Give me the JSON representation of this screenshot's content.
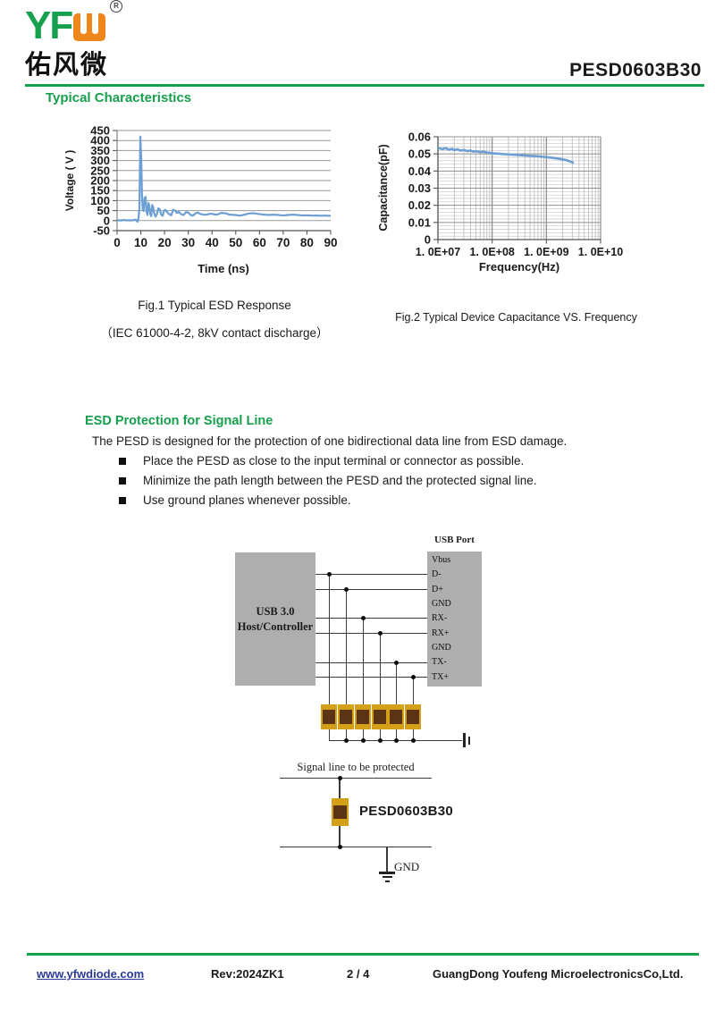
{
  "header": {
    "logo_yf": "YF",
    "logo_cn": "佑风微",
    "registered_mark": "®",
    "part_number": "PESD0603B30"
  },
  "sections": {
    "typical_characteristics": "Typical Characteristics",
    "esd_protection": {
      "title": "ESD Protection for Signal Line",
      "intro": "The PESD is designed for the protection of one bidirectional data line from ESD damage.",
      "bullets": [
        "Place the PESD as close to the input terminal or connector as possible.",
        "Minimize the path length between the PESD and the protected signal line.",
        "Use ground planes whenever possible."
      ]
    }
  },
  "figures": {
    "fig1_caption_line1": "Fig.1 Typical ESD Response",
    "fig1_caption_line2": "（IEC 61000-4-2, 8kV contact discharge）",
    "fig2_caption": "Fig.2 Typical Device Capacitance VS. Frequency"
  },
  "chart_data": [
    {
      "type": "line",
      "title": "Typical ESD Response",
      "xlabel": "Time (ns)",
      "ylabel": "Voltage ( V )",
      "xlim": [
        0,
        90
      ],
      "ylim": [
        -50,
        450
      ],
      "xticks": [
        0,
        10,
        20,
        30,
        40,
        50,
        60,
        70,
        80,
        90
      ],
      "yticks": [
        450,
        400,
        350,
        300,
        250,
        200,
        150,
        100,
        50,
        0,
        -50
      ],
      "grid": "horizontal",
      "legend": "none",
      "line_color": "#6D9FD4",
      "series": [
        {
          "name": "ESD response 8kV contact",
          "points": [
            [
              0,
              2
            ],
            [
              1.5,
              1
            ],
            [
              3,
              3
            ],
            [
              4,
              1
            ],
            [
              5,
              2
            ],
            [
              6,
              1
            ],
            [
              7,
              3
            ],
            [
              8,
              4
            ],
            [
              8.6,
              -6
            ],
            [
              9,
              8
            ],
            [
              9.4,
              60
            ],
            [
              9.8,
              420
            ],
            [
              10.2,
              300
            ],
            [
              10.5,
              120
            ],
            [
              10.8,
              55
            ],
            [
              11.2,
              48
            ],
            [
              11.6,
              115
            ],
            [
              12,
              118
            ],
            [
              12.4,
              45
            ],
            [
              12.8,
              28
            ],
            [
              13.2,
              88
            ],
            [
              13.6,
              72
            ],
            [
              14,
              32
            ],
            [
              14.4,
              22
            ],
            [
              14.8,
              78
            ],
            [
              15.2,
              68
            ],
            [
              15.6,
              38
            ],
            [
              16.2,
              20
            ],
            [
              16.8,
              32
            ],
            [
              17.4,
              62
            ],
            [
              18,
              56
            ],
            [
              18.6,
              30
            ],
            [
              19.2,
              24
            ],
            [
              19.8,
              50
            ],
            [
              20.4,
              54
            ],
            [
              21.2,
              40
            ],
            [
              22,
              32
            ],
            [
              22.8,
              26
            ],
            [
              23.6,
              54
            ],
            [
              24.4,
              50
            ],
            [
              25.2,
              38
            ],
            [
              26,
              44
            ],
            [
              27,
              32
            ],
            [
              28,
              28
            ],
            [
              29,
              42
            ],
            [
              30,
              40
            ],
            [
              31,
              28
            ],
            [
              32,
              25
            ],
            [
              33,
              36
            ],
            [
              34,
              40
            ],
            [
              35,
              34
            ],
            [
              36,
              31
            ],
            [
              37,
              29
            ],
            [
              38,
              31
            ],
            [
              39,
              34
            ],
            [
              40,
              34
            ],
            [
              41,
              31
            ],
            [
              42,
              30
            ],
            [
              43,
              34
            ],
            [
              44,
              39
            ],
            [
              45,
              37
            ],
            [
              46,
              36
            ],
            [
              47,
              31
            ],
            [
              48,
              30
            ],
            [
              49,
              28
            ],
            [
              50,
              28
            ],
            [
              51,
              26
            ],
            [
              52,
              25
            ],
            [
              53,
              28
            ],
            [
              54,
              31
            ],
            [
              55,
              34
            ],
            [
              56,
              36
            ],
            [
              57,
              37
            ],
            [
              58,
              36
            ],
            [
              59,
              34
            ],
            [
              60,
              33
            ],
            [
              61,
              31
            ],
            [
              62,
              30
            ],
            [
              63,
              29
            ],
            [
              64,
              28
            ],
            [
              65,
              29
            ],
            [
              66,
              30
            ],
            [
              67,
              29
            ],
            [
              68,
              28
            ],
            [
              69,
              27
            ],
            [
              70,
              26
            ],
            [
              71,
              27
            ],
            [
              72,
              28
            ],
            [
              73,
              29
            ],
            [
              74,
              30
            ],
            [
              75,
              29
            ],
            [
              76,
              28
            ],
            [
              77,
              27
            ],
            [
              78,
              26
            ],
            [
              79,
              26
            ],
            [
              80,
              27
            ],
            [
              81,
              26
            ],
            [
              82,
              25
            ],
            [
              83,
              25
            ],
            [
              84,
              26
            ],
            [
              85,
              25
            ],
            [
              86,
              24
            ],
            [
              87,
              25
            ],
            [
              88,
              25
            ],
            [
              89,
              24
            ],
            [
              90,
              24
            ]
          ]
        }
      ]
    },
    {
      "type": "line",
      "title": "Typical Device Capacitance VS. Frequency",
      "xlabel": "Frequency(Hz)",
      "ylabel": "Capacitance(pF)",
      "x_scale": "log",
      "xlim": [
        10000000.0,
        10000000000.0
      ],
      "ylim": [
        0,
        0.06
      ],
      "xtick_labels": [
        "1. 0E+07",
        "1. 0E+08",
        "1. 0E+09",
        "1. 0E+10"
      ],
      "yticks": [
        0,
        0.01,
        0.02,
        0.03,
        0.04,
        0.05,
        0.06
      ],
      "grid": "both-dense",
      "legend": "none",
      "line_color": "#6D9FD4",
      "series": [
        {
          "name": "capacitance",
          "points": [
            [
              10000000.0,
              0.0535
            ],
            [
              12000000.0,
              0.0528
            ],
            [
              14000000.0,
              0.0533
            ],
            [
              16000000.0,
              0.0524
            ],
            [
              18000000.0,
              0.053
            ],
            [
              20000000.0,
              0.0522
            ],
            [
              23000000.0,
              0.0527
            ],
            [
              26000000.0,
              0.0519
            ],
            [
              30000000.0,
              0.0523
            ],
            [
              35000000.0,
              0.0516
            ],
            [
              40000000.0,
              0.052
            ],
            [
              45000000.0,
              0.0513
            ],
            [
              50000000.0,
              0.0516
            ],
            [
              60000000.0,
              0.0511
            ],
            [
              70000000.0,
              0.0513
            ],
            [
              80000000.0,
              0.0508
            ],
            [
              90000000.0,
              0.0506
            ],
            [
              100000000.0,
              0.0504
            ],
            [
              130000000.0,
              0.0501
            ],
            [
              160000000.0,
              0.0499
            ],
            [
              200000000.0,
              0.0497
            ],
            [
              250000000.0,
              0.0495
            ],
            [
              300000000.0,
              0.0493
            ],
            [
              400000000.0,
              0.0491
            ],
            [
              500000000.0,
              0.0489
            ],
            [
              650000000.0,
              0.0487
            ],
            [
              800000000.0,
              0.0484
            ],
            [
              1000000000.0,
              0.0481
            ],
            [
              1300000000.0,
              0.0477
            ],
            [
              1600000000.0,
              0.0473
            ],
            [
              2000000000.0,
              0.0468
            ],
            [
              2400000000.0,
              0.0462
            ],
            [
              2800000000.0,
              0.0455
            ],
            [
              3200000000.0,
              0.0447
            ]
          ]
        }
      ]
    }
  ],
  "diagram": {
    "host_label_line1": "USB 3.0",
    "host_label_line2": "Host/Controller",
    "usb_port_title": "USB Port",
    "pins": [
      "Vbus",
      "D-",
      "D+",
      "GND",
      "RX-",
      "RX+",
      "GND",
      "TX-",
      "TX+"
    ],
    "signal_line_label": "Signal line to be protected",
    "device_label": "PESD0603B30",
    "gnd_label": "GND"
  },
  "footer": {
    "website": "www.yfwdiode.com",
    "revision": "Rev:2024ZK1",
    "page": "2 / 4",
    "company": "GuangDong Youfeng MicroelectronicsCo,Ltd."
  },
  "colors": {
    "green": "#16A04E",
    "orange": "#EF861B",
    "chart_line": "#6D9FD4",
    "link_blue": "#2B3A96",
    "chip_gold": "#D4A017",
    "chip_brown": "#5B3418",
    "box_gray": "#AEAEAE"
  }
}
